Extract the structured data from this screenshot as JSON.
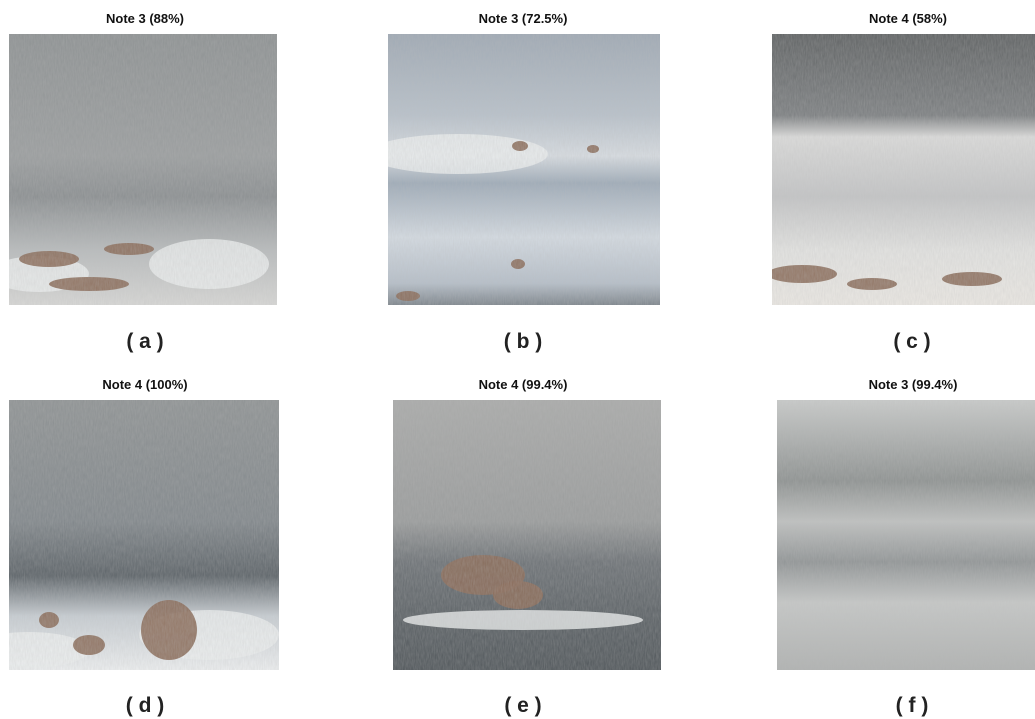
{
  "panels": [
    {
      "title": "Note 3 (88%)",
      "label": "( a )"
    },
    {
      "title": "Note 3 (72.5%)",
      "label": "( b )"
    },
    {
      "title": "Note 4 (58%)",
      "label": "( c )"
    },
    {
      "title": "Note 4 (100%)",
      "label": "( d )"
    },
    {
      "title": "Note 4 (99.4%)",
      "label": "( e )"
    },
    {
      "title": "Note 3 (99.4%)",
      "label": "( f )"
    }
  ]
}
